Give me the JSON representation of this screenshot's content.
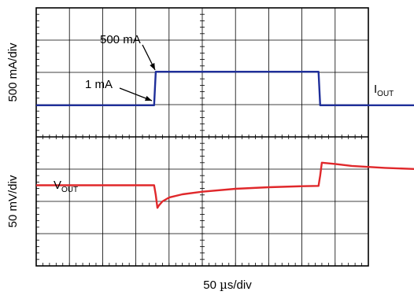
{
  "chart_data": {
    "type": "line",
    "panels": [
      {
        "ylabel": "500 mA/div",
        "series": [
          {
            "name_main": "I",
            "name_sub": "OUT",
            "color": "#1f2f9a",
            "x": [
              0,
              3.55,
              3.6,
              8.5,
              8.55,
              11.5
            ],
            "y": [
              -1.02,
              -1.02,
              0.02,
              0.02,
              -1.02,
              -1.02
            ]
          }
        ],
        "annotations": [
          {
            "text": "500 mA"
          },
          {
            "text": "1 mA"
          }
        ]
      },
      {
        "ylabel": "50 mV/div",
        "series": [
          {
            "name_main": "V",
            "name_sub": "OUT",
            "color": "#e0282b",
            "x": [
              0,
              3.55,
              3.6,
              3.65,
              3.7,
              3.8,
              4.0,
              4.4,
              5.0,
              6.0,
              7.0,
              8.0,
              8.5,
              8.55,
              8.6,
              9.0,
              9.5,
              10.5,
              11.5
            ],
            "y": [
              0,
              0,
              -0.3,
              -0.7,
              -0.62,
              -0.5,
              -0.38,
              -0.28,
              -0.2,
              -0.11,
              -0.06,
              -0.03,
              -0.02,
              0.3,
              0.7,
              0.66,
              0.6,
              0.54,
              0.5
            ]
          }
        ]
      }
    ],
    "xlabel_num": "50",
    "xlabel_mu": "µ",
    "xlabel_unit": "s/div",
    "grid": true,
    "xdivs": 10,
    "ydivs": 8
  }
}
